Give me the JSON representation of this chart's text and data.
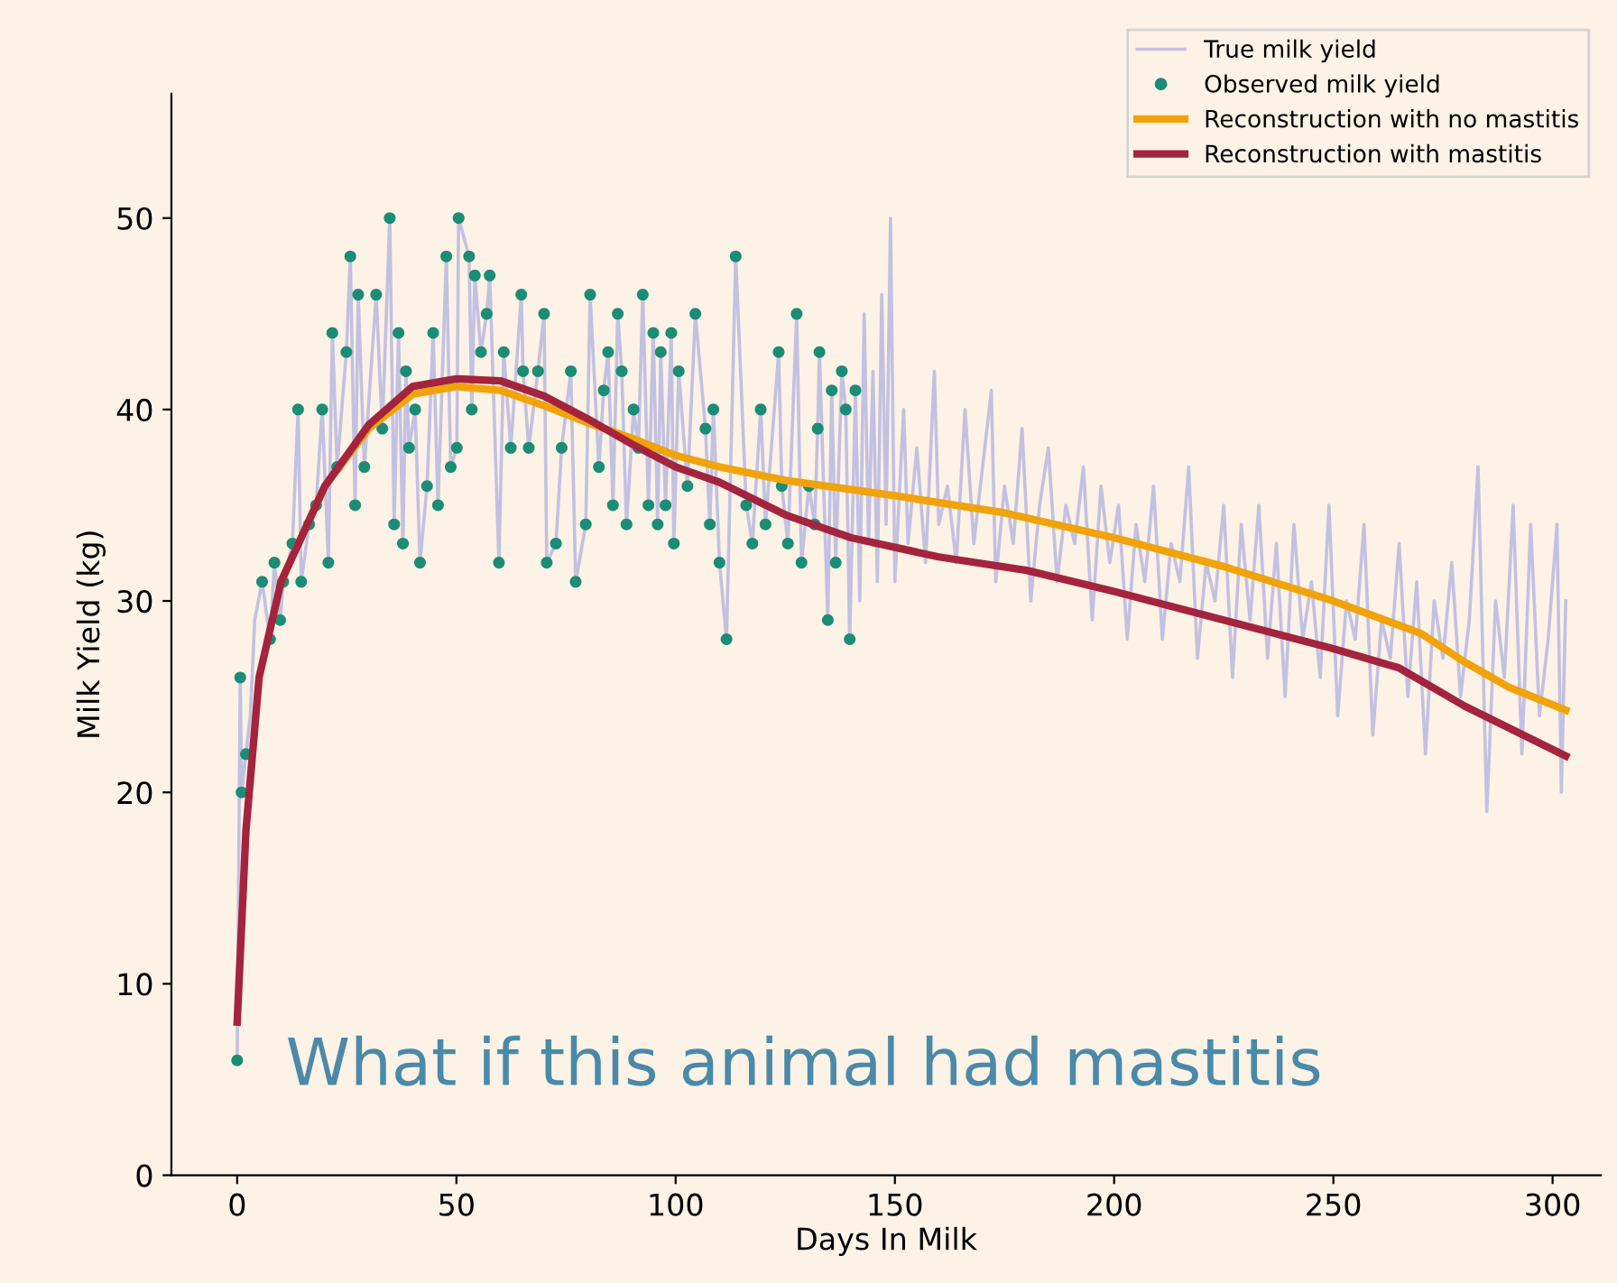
{
  "chart_data": {
    "type": "line",
    "xlabel": "Days In Milk",
    "ylabel": "Milk Yield (kg)",
    "xlim": [
      -15,
      311
    ],
    "ylim": [
      0,
      56.5
    ],
    "xticks": [
      0,
      50,
      100,
      150,
      200,
      250,
      300
    ],
    "yticks": [
      0,
      10,
      20,
      30,
      40,
      50
    ],
    "grid": false,
    "legend": "top right",
    "annotations": [
      "What if this animal had mastitis"
    ],
    "series": [
      {
        "name": "True milk yield",
        "color": "#b4b4e0",
        "x": [
          0,
          0.7,
          1,
          2,
          3,
          4,
          5.7,
          7.5,
          8.5,
          9.8,
          10.5,
          12.6,
          13.9,
          14.6,
          16.4,
          18.0,
          19.4,
          20.8,
          21.7,
          22.8,
          24.9,
          25.8,
          26.9,
          27.6,
          29.0,
          31.7,
          33.1,
          34.8,
          35.8,
          36.8,
          37.8,
          38.5,
          39.2,
          40.6,
          41.7,
          43.3,
          44.7,
          45.8,
          47.7,
          48.7,
          50.1,
          50.5,
          52.9,
          53.5,
          54.2,
          55.6,
          56.9,
          57.6,
          59.7,
          60.8,
          62.4,
          64.8,
          65.2,
          66.5,
          68.6,
          70.0,
          70.6,
          72.7,
          74.0,
          76.1,
          77.2,
          79.5,
          80.5,
          82.5,
          83.6,
          84.6,
          85.7,
          86.8,
          87.7,
          88.8,
          90.4,
          91.5,
          92.5,
          93.8,
          94.9,
          95.9,
          96.6,
          97.7,
          99.0,
          99.6,
          100.7,
          102.7,
          104.5,
          106.8,
          107.8,
          108.6,
          110.0,
          111.6,
          113.7,
          116.1,
          117.5,
          119.4,
          120.5,
          123.5,
          124.2,
          125.6,
          127.6,
          128.7,
          130.4,
          131.7,
          132.4,
          132.8,
          134.7,
          135.6,
          136.5,
          137.9,
          138.8,
          139.7,
          141.0,
          142,
          143,
          144,
          145,
          146,
          147,
          148,
          149,
          150,
          152,
          153,
          155,
          157,
          159,
          160,
          162,
          164,
          166,
          168,
          170,
          172,
          173,
          175,
          177,
          179,
          181,
          183,
          185,
          187,
          189,
          191,
          193,
          195,
          197,
          199,
          201,
          203,
          205,
          207,
          209,
          211,
          213,
          215,
          217,
          219,
          221,
          223,
          225,
          227,
          229,
          231,
          233,
          235,
          237,
          239,
          241,
          243,
          245,
          247,
          249,
          251,
          253,
          255,
          257,
          259,
          261,
          263,
          265,
          267,
          269,
          271,
          273,
          275,
          277,
          279,
          281,
          283,
          285,
          287,
          289,
          291,
          293,
          295,
          297,
          299,
          301,
          302,
          303
        ],
        "values": [
          6,
          26.0,
          20,
          22,
          24,
          29,
          31.0,
          28.0,
          32.0,
          29.0,
          31.0,
          33.0,
          40.0,
          31.0,
          34.0,
          35.0,
          40.0,
          32.0,
          44.0,
          37.0,
          43.0,
          48.0,
          35.0,
          46.0,
          37.0,
          46.0,
          39.0,
          50.0,
          34.0,
          44.0,
          33.0,
          42.0,
          38.0,
          40.0,
          32.0,
          36.0,
          44.0,
          35.0,
          48.0,
          37.0,
          38.0,
          50.0,
          48.0,
          40.0,
          47.0,
          43.0,
          45.0,
          47.0,
          32.0,
          43.0,
          38.0,
          46.0,
          42.0,
          38.0,
          42.0,
          45.0,
          32.0,
          33.0,
          38.0,
          42.0,
          31.0,
          34.0,
          46.0,
          37.0,
          41.0,
          43.0,
          35.0,
          45.0,
          42.0,
          34.0,
          40.0,
          38.0,
          46.0,
          35.0,
          44.0,
          34.0,
          43.0,
          35.0,
          44.0,
          33.0,
          42.0,
          36.0,
          45.0,
          39.0,
          34.0,
          40.0,
          32.0,
          28.0,
          48.0,
          35.0,
          33.0,
          40.0,
          34.0,
          43.0,
          36.0,
          33.0,
          45.0,
          32.0,
          36.0,
          34.0,
          39.0,
          43.0,
          29.0,
          41.0,
          32.0,
          42.0,
          40.0,
          28.0,
          41.0,
          30,
          45,
          33,
          42,
          31,
          46,
          34,
          50,
          31,
          40,
          33,
          38,
          32,
          42,
          34,
          36,
          32,
          40,
          33,
          37,
          41,
          31,
          36,
          33,
          39,
          30,
          35,
          38,
          31,
          35,
          33,
          37,
          29,
          36,
          32,
          35,
          28,
          34,
          31,
          36,
          28,
          33,
          31,
          37,
          27,
          32,
          30,
          35,
          26,
          34,
          29,
          35,
          27,
          33,
          25,
          34,
          28,
          31,
          26,
          35,
          24,
          30,
          28,
          34,
          23,
          29,
          27,
          33,
          25,
          31,
          22,
          30,
          27,
          32,
          25,
          29,
          37,
          19,
          30,
          26,
          35,
          22,
          34,
          24,
          28,
          34,
          20,
          30
        ]
      },
      {
        "name": "Observed milk yield",
        "type": "scatter",
        "color": "#1b8c76",
        "marker": "circle",
        "x": [
          0,
          0.7,
          1,
          2,
          5.7,
          7.5,
          8.5,
          9.8,
          10.5,
          12.6,
          13.9,
          14.6,
          16.4,
          18.0,
          19.4,
          20.8,
          21.7,
          22.8,
          24.9,
          25.8,
          26.9,
          27.6,
          29.0,
          31.7,
          33.1,
          34.8,
          35.8,
          36.8,
          37.8,
          38.5,
          39.2,
          40.6,
          41.7,
          43.3,
          44.7,
          45.8,
          47.7,
          48.7,
          50.1,
          50.5,
          52.9,
          53.5,
          54.2,
          55.6,
          56.9,
          57.6,
          59.7,
          60.8,
          62.4,
          64.8,
          65.2,
          66.5,
          68.6,
          70.0,
          70.6,
          72.7,
          74.0,
          76.1,
          77.2,
          79.5,
          80.5,
          82.5,
          83.6,
          84.6,
          85.7,
          86.8,
          87.7,
          88.8,
          90.4,
          91.5,
          92.5,
          93.8,
          94.9,
          95.9,
          96.6,
          97.7,
          99.0,
          99.6,
          100.7,
          102.7,
          104.5,
          106.8,
          107.8,
          108.6,
          110.0,
          111.6,
          113.7,
          116.1,
          117.5,
          119.4,
          120.5,
          123.5,
          124.2,
          125.6,
          127.6,
          128.7,
          130.4,
          131.7,
          132.4,
          132.8,
          134.7,
          135.6,
          136.5,
          137.9,
          138.8,
          139.7,
          141.0
        ],
        "values": [
          6,
          26.0,
          20,
          22,
          31.0,
          28.0,
          32.0,
          29.0,
          31.0,
          33.0,
          40.0,
          31.0,
          34.0,
          35.0,
          40.0,
          32.0,
          44.0,
          37.0,
          43.0,
          48.0,
          35.0,
          46.0,
          37.0,
          46.0,
          39.0,
          50.0,
          34.0,
          44.0,
          33.0,
          42.0,
          38.0,
          40.0,
          32.0,
          36.0,
          44.0,
          35.0,
          48.0,
          37.0,
          38.0,
          50.0,
          48.0,
          40.0,
          47.0,
          43.0,
          45.0,
          47.0,
          32.0,
          43.0,
          38.0,
          46.0,
          42.0,
          38.0,
          42.0,
          45.0,
          32.0,
          33.0,
          38.0,
          42.0,
          31.0,
          34.0,
          46.0,
          37.0,
          41.0,
          43.0,
          35.0,
          45.0,
          42.0,
          34.0,
          40.0,
          38.0,
          46.0,
          35.0,
          44.0,
          34.0,
          43.0,
          35.0,
          44.0,
          33.0,
          42.0,
          36.0,
          45.0,
          39.0,
          34.0,
          40.0,
          32.0,
          28.0,
          48.0,
          35.0,
          33.0,
          40.0,
          34.0,
          43.0,
          36.0,
          33.0,
          45.0,
          32.0,
          36.0,
          34.0,
          39.0,
          43.0,
          29.0,
          41.0,
          32.0,
          42.0,
          40.0,
          28.0,
          41.0
        ]
      },
      {
        "name": "Reconstruction with no mastitis",
        "type": "line",
        "color": "#f0a30a",
        "x": [
          10,
          20,
          30,
          40,
          50,
          60,
          70,
          80,
          90,
          100,
          110,
          125,
          150,
          175,
          200,
          225,
          250,
          270,
          280,
          290,
          303
        ],
        "values": [
          31,
          36,
          39,
          40.8,
          41.2,
          41,
          40.2,
          39.3,
          38.5,
          37.6,
          37,
          36.3,
          35.5,
          34.6,
          33.3,
          31.8,
          30,
          28.3,
          26.8,
          25.5,
          24.3
        ]
      },
      {
        "name": "Reconstruction with mastitis",
        "type": "line",
        "color": "#a3243c",
        "x": [
          0,
          2,
          5,
          10,
          20,
          30,
          40,
          50,
          60,
          70,
          80,
          90,
          100,
          110,
          125,
          140,
          160,
          180,
          200,
          225,
          250,
          265,
          280,
          303
        ],
        "values": [
          8,
          18,
          26,
          31,
          36,
          39.2,
          41.2,
          41.6,
          41.5,
          40.7,
          39.5,
          38.2,
          37,
          36.2,
          34.5,
          33.3,
          32.3,
          31.6,
          30.5,
          29,
          27.5,
          26.5,
          24.5,
          21.9
        ]
      }
    ]
  }
}
